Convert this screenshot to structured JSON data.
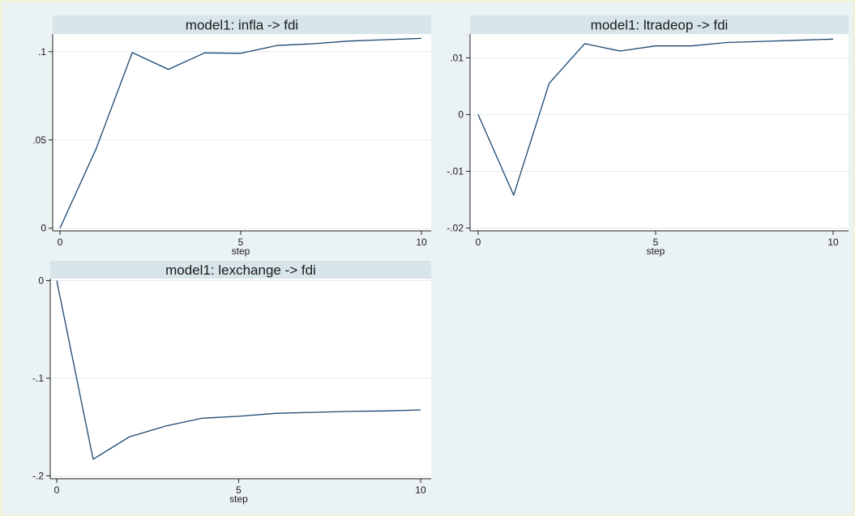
{
  "colors": {
    "background": "#eaf2f3",
    "border": "#f2f2c8",
    "title_band": "#d7e5ea",
    "plot_bg": "#ffffff",
    "grid": "#e3ecef",
    "line": "#1a476f",
    "axis": "#222222"
  },
  "chart_data": [
    {
      "type": "line",
      "title": "model1: infla -> fdi",
      "xlabel": "step",
      "ylabel": "",
      "xlim": [
        0,
        10
      ],
      "ylim": [
        -0.0015,
        0.11
      ],
      "xticks": [
        0,
        5,
        10
      ],
      "yticks": [
        0,
        0.05,
        0.1
      ],
      "ytick_labels": [
        "0",
        ".05",
        ".1"
      ],
      "grid": true,
      "x": [
        0,
        1,
        2,
        3,
        4,
        5,
        6,
        7,
        8,
        9,
        10
      ],
      "values": [
        0,
        0.045,
        0.0995,
        0.09,
        0.0993,
        0.0991,
        0.1035,
        0.1045,
        0.106,
        0.1068,
        0.1075
      ]
    },
    {
      "type": "line",
      "title": "model1: ltradeop -> fdi",
      "xlabel": "step",
      "ylabel": "",
      "xlim": [
        0,
        10
      ],
      "ylim": [
        -0.0205,
        0.0142
      ],
      "xticks": [
        0,
        5,
        10
      ],
      "yticks": [
        -0.02,
        -0.01,
        0,
        0.01
      ],
      "ytick_labels": [
        "-.02",
        "-.01",
        "0",
        ".01"
      ],
      "grid": true,
      "x": [
        0,
        1,
        2,
        3,
        4,
        5,
        6,
        7,
        8,
        9,
        10
      ],
      "values": [
        0,
        -0.0142,
        0.0055,
        0.0125,
        0.0112,
        0.0121,
        0.0121,
        0.0127,
        0.0129,
        0.0131,
        0.0133
      ]
    },
    {
      "type": "line",
      "title": "model1: lexchange -> fdi",
      "xlabel": "step",
      "ylabel": "",
      "xlim": [
        0,
        10
      ],
      "ylim": [
        -0.203,
        0.002
      ],
      "xticks": [
        0,
        5,
        10
      ],
      "yticks": [
        -0.2,
        -0.1,
        0
      ],
      "ytick_labels": [
        "-.2",
        "-.1",
        "0"
      ],
      "grid": true,
      "x": [
        0,
        1,
        2,
        3,
        4,
        5,
        6,
        7,
        8,
        9,
        10
      ],
      "values": [
        0,
        -0.183,
        -0.16,
        -0.149,
        -0.141,
        -0.139,
        -0.136,
        -0.135,
        -0.134,
        -0.1335,
        -0.1325
      ]
    }
  ]
}
